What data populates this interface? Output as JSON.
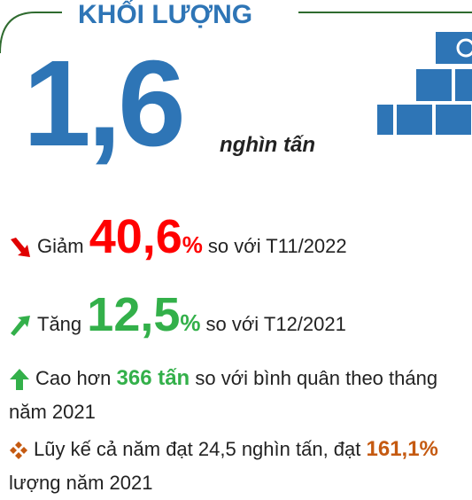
{
  "header": {
    "title": "KHỐI LƯỢNG"
  },
  "headline": {
    "value": "1,6",
    "unit": "nghìn tấn"
  },
  "items": [
    {
      "lead": "Giảm",
      "figure": "40,6",
      "suffix": "%",
      "tail": "so với T11/2022"
    },
    {
      "lead": "Tăng",
      "figure": "12,5",
      "suffix": "%",
      "tail": "so với T12/2021"
    },
    {
      "lead": "Cao hơn",
      "figure": "366 tấn",
      "tail": "so với bình quân theo tháng năm 2021"
    },
    {
      "lead": "Lũy kế cả năm đạt 24,5 nghìn tấn, đạt",
      "figure": "161,1%",
      "tail": "lượng năm 2021"
    }
  ]
}
